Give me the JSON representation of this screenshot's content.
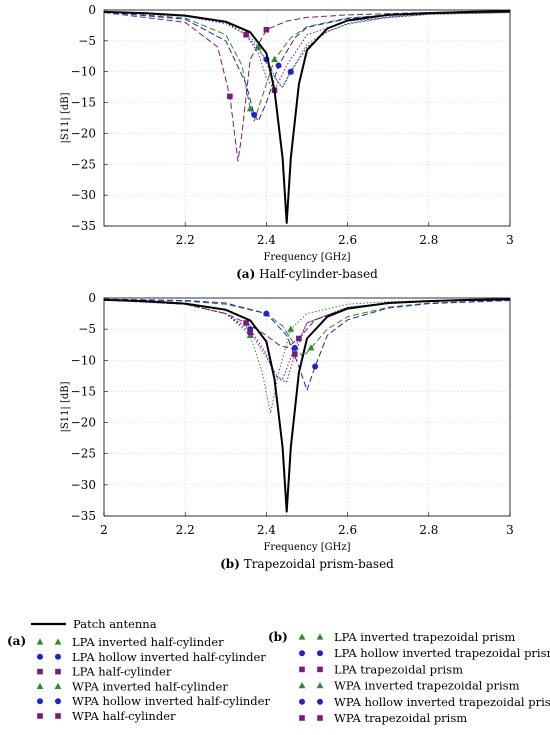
{
  "chart_data": [
    {
      "type": "line",
      "xlabel": "Frequency [GHz]",
      "ylabel": "|S11| [dB]",
      "caption_letter": "(a)",
      "caption_text": "Half-cylinder-based",
      "xlim": [
        2.0,
        3.0
      ],
      "ylim": [
        -35,
        0
      ],
      "xticks": [
        2.2,
        2.4,
        2.6,
        2.8,
        3.0
      ],
      "xtick_labels": [
        "2.2",
        "2.4",
        "2.6",
        "2.8",
        "3"
      ],
      "yticks": [
        0,
        -5,
        -10,
        -15,
        -20,
        -25,
        -30,
        -35
      ],
      "ytick_labels": [
        "0",
        "−5",
        "−10",
        "−15",
        "−20",
        "−25",
        "−30",
        "−35"
      ],
      "grid": true,
      "series": [
        {
          "name": "Patch antenna",
          "color": "#000000",
          "dash": "solid",
          "marker": "none",
          "x": [
            2.0,
            2.1,
            2.2,
            2.3,
            2.36,
            2.4,
            2.42,
            2.44,
            2.45,
            2.46,
            2.48,
            2.5,
            2.55,
            2.6,
            2.7,
            2.8,
            2.9,
            3.0
          ],
          "y": [
            -0.3,
            -0.5,
            -0.9,
            -1.9,
            -3.6,
            -7,
            -13,
            -24,
            -34.5,
            -24,
            -12,
            -6.5,
            -3,
            -1.7,
            -0.8,
            -0.5,
            -0.3,
            -0.2
          ]
        },
        {
          "name": "LPA inverted half-cylinder",
          "color": "#2e8b2e",
          "dash": "dash",
          "marker": "triangle",
          "x": [
            2.0,
            2.2,
            2.3,
            2.34,
            2.36,
            2.37,
            2.39,
            2.42,
            2.46,
            2.5,
            2.6,
            2.7,
            2.8,
            3.0
          ],
          "y": [
            -0.3,
            -1.3,
            -4,
            -9,
            -16,
            -18,
            -14,
            -8,
            -4.5,
            -2.7,
            -1.3,
            -0.8,
            -0.5,
            -0.3
          ]
        },
        {
          "name": "LPA hollow inverted half-cylinder",
          "color": "#2222cc",
          "dash": "dash",
          "marker": "circle",
          "x": [
            2.0,
            2.2,
            2.3,
            2.35,
            2.37,
            2.38,
            2.4,
            2.43,
            2.47,
            2.5,
            2.6,
            2.7,
            2.8,
            3.0
          ],
          "y": [
            -0.3,
            -1.5,
            -5,
            -12,
            -17,
            -18,
            -15,
            -9,
            -4.5,
            -2.8,
            -1.4,
            -0.8,
            -0.5,
            -0.3
          ]
        },
        {
          "name": "LPA half-cylinder",
          "color": "#7a1a7a",
          "dash": "dash",
          "marker": "square",
          "x": [
            2.0,
            2.2,
            2.28,
            2.31,
            2.33,
            2.34,
            2.36,
            2.4,
            2.45,
            2.5,
            2.6,
            2.8,
            3.0
          ],
          "y": [
            -0.4,
            -2,
            -6,
            -14,
            -24.5,
            -20,
            -8,
            -3.2,
            -1.8,
            -1.2,
            -0.8,
            -0.4,
            -0.3
          ]
        },
        {
          "name": "WPA inverted half-cylinder",
          "color": "#2e8b2e",
          "dash": "dot",
          "marker": "triangle",
          "x": [
            2.0,
            2.2,
            2.3,
            2.35,
            2.38,
            2.41,
            2.44,
            2.46,
            2.5,
            2.55,
            2.6,
            2.7,
            2.8,
            3.0
          ],
          "y": [
            -0.3,
            -0.9,
            -2,
            -3.5,
            -6,
            -10,
            -12.5,
            -10,
            -5.5,
            -3.5,
            -2.3,
            -1.2,
            -0.7,
            -0.4
          ]
        },
        {
          "name": "WPA hollow inverted half-cylinder",
          "color": "#2222cc",
          "dash": "dot",
          "marker": "circle",
          "x": [
            2.0,
            2.2,
            2.3,
            2.35,
            2.4,
            2.43,
            2.44,
            2.46,
            2.5,
            2.55,
            2.6,
            2.7,
            2.8,
            3.0
          ],
          "y": [
            -0.3,
            -1,
            -2.2,
            -4,
            -8,
            -12,
            -12.5,
            -10,
            -6,
            -3.5,
            -2.2,
            -1.1,
            -0.6,
            -0.4
          ]
        },
        {
          "name": "WPA half-cylinder",
          "color": "#7a1a7a",
          "dash": "dot",
          "marker": "square",
          "x": [
            2.0,
            2.2,
            2.3,
            2.35,
            2.38,
            2.4,
            2.42,
            2.45,
            2.5,
            2.6,
            2.8,
            3.0
          ],
          "y": [
            -0.3,
            -0.9,
            -2,
            -4,
            -7,
            -11,
            -13,
            -9,
            -4,
            -1.8,
            -0.7,
            -0.4
          ]
        }
      ]
    },
    {
      "type": "line",
      "xlabel": "Frequency [GHz]",
      "ylabel": "|S11| [dB]",
      "caption_letter": "(b)",
      "caption_text": "Trapezoidal prism-based",
      "xlim": [
        2.0,
        3.0
      ],
      "ylim": [
        -35,
        0
      ],
      "xticks": [
        2.0,
        2.2,
        2.4,
        2.6,
        2.8,
        3.0
      ],
      "xtick_labels": [
        "2",
        "2.2",
        "2.4",
        "2.6",
        "2.8",
        "3"
      ],
      "yticks": [
        0,
        -5,
        -10,
        -15,
        -20,
        -25,
        -30,
        -35
      ],
      "ytick_labels": [
        "0",
        "−5",
        "−10",
        "−15",
        "−20",
        "−25",
        "−30",
        "−35"
      ],
      "grid": true,
      "series": [
        {
          "name": "Patch antenna",
          "color": "#000000",
          "dash": "solid",
          "marker": "none",
          "x": [
            2.0,
            2.1,
            2.2,
            2.3,
            2.36,
            2.4,
            2.42,
            2.44,
            2.45,
            2.46,
            2.48,
            2.5,
            2.55,
            2.6,
            2.7,
            2.8,
            2.9,
            3.0
          ],
          "y": [
            -0.3,
            -0.5,
            -0.9,
            -1.9,
            -3.6,
            -7,
            -13,
            -24,
            -34.3,
            -24,
            -12,
            -6.5,
            -3,
            -1.7,
            -0.8,
            -0.5,
            -0.3,
            -0.2
          ]
        },
        {
          "name": "LPA inverted trapezoidal prism",
          "color": "#2e8b2e",
          "dash": "dash",
          "marker": "triangle",
          "x": [
            2.0,
            2.2,
            2.3,
            2.4,
            2.44,
            2.47,
            2.49,
            2.51,
            2.55,
            2.6,
            2.7,
            2.8,
            3.0
          ],
          "y": [
            -0.2,
            -0.5,
            -1,
            -2.5,
            -4.5,
            -7.5,
            -9.5,
            -8,
            -5,
            -3,
            -1.5,
            -0.8,
            -0.4
          ]
        },
        {
          "name": "LPA hollow inverted trapezoidal prism",
          "color": "#2222cc",
          "dash": "dash",
          "marker": "circle",
          "x": [
            2.0,
            2.2,
            2.3,
            2.4,
            2.45,
            2.48,
            2.5,
            2.52,
            2.55,
            2.6,
            2.7,
            2.8,
            3.0
          ],
          "y": [
            -0.2,
            -0.4,
            -0.8,
            -2.5,
            -6,
            -11,
            -14.8,
            -11,
            -6,
            -3.5,
            -1.6,
            -0.9,
            -0.4
          ]
        },
        {
          "name": "LPA trapezoidal prism",
          "color": "#7a1a7a",
          "dash": "dash",
          "marker": "square",
          "x": [
            2.0,
            2.2,
            2.3,
            2.35,
            2.4,
            2.43,
            2.45,
            2.48,
            2.52,
            2.6,
            2.7,
            2.8,
            3.0
          ],
          "y": [
            -0.3,
            -1,
            -2.5,
            -4,
            -6,
            -7.5,
            -8,
            -6.5,
            -3.5,
            -1.7,
            -0.9,
            -0.5,
            -0.3
          ]
        },
        {
          "name": "WPA inverted trapezoidal prism",
          "color": "#2e8b2e",
          "dash": "dot",
          "marker": "triangle",
          "x": [
            2.0,
            2.2,
            2.3,
            2.36,
            2.39,
            2.41,
            2.43,
            2.46,
            2.5,
            2.6,
            2.7,
            2.8,
            3.0
          ],
          "y": [
            -0.3,
            -1,
            -2.5,
            -6,
            -12,
            -18.5,
            -12,
            -5,
            -2.5,
            -1,
            -0.6,
            -0.4,
            -0.3
          ]
        },
        {
          "name": "WPA hollow inverted trapezoidal prism",
          "color": "#2222cc",
          "dash": "dot",
          "marker": "circle",
          "x": [
            2.0,
            2.2,
            2.3,
            2.36,
            2.4,
            2.42,
            2.44,
            2.47,
            2.5,
            2.6,
            2.7,
            2.8,
            3.0
          ],
          "y": [
            -0.3,
            -1,
            -2.5,
            -5,
            -9,
            -12.5,
            -13,
            -8,
            -4,
            -1.5,
            -0.8,
            -0.5,
            -0.3
          ]
        },
        {
          "name": "WPA trapezoidal prism",
          "color": "#7a1a7a",
          "dash": "dot",
          "marker": "square",
          "x": [
            2.0,
            2.2,
            2.3,
            2.36,
            2.4,
            2.43,
            2.45,
            2.47,
            2.5,
            2.6,
            2.7,
            2.8,
            3.0
          ],
          "y": [
            -0.3,
            -1,
            -2.5,
            -5.5,
            -9.5,
            -13,
            -13.5,
            -9,
            -4,
            -1.5,
            -0.8,
            -0.5,
            -0.3
          ]
        }
      ]
    }
  ],
  "legend": {
    "common": "Patch antenna",
    "group_a_label": "(a)",
    "group_a": [
      "LPA inverted half-cylinder",
      "LPA hollow inverted half-cylinder",
      "LPA half-cylinder",
      "WPA inverted half-cylinder",
      "WPA hollow inverted half-cylinder",
      "WPA half-cylinder"
    ],
    "group_b_label": "(b)",
    "group_b": [
      "LPA inverted trapezoidal prism",
      "LPA hollow inverted trapezoidal prism",
      "LPA trapezoidal prism",
      "WPA inverted trapezoidal prism",
      "WPA hollow inverted trapezoidal prism",
      "WPA trapezoidal prism"
    ],
    "markers": [
      "triangle",
      "circle",
      "square",
      "triangle",
      "circle",
      "square"
    ],
    "colors": [
      "#2e8b2e",
      "#2222cc",
      "#7a1a7a",
      "#2e8b2e",
      "#2222cc",
      "#7a1a7a"
    ]
  }
}
